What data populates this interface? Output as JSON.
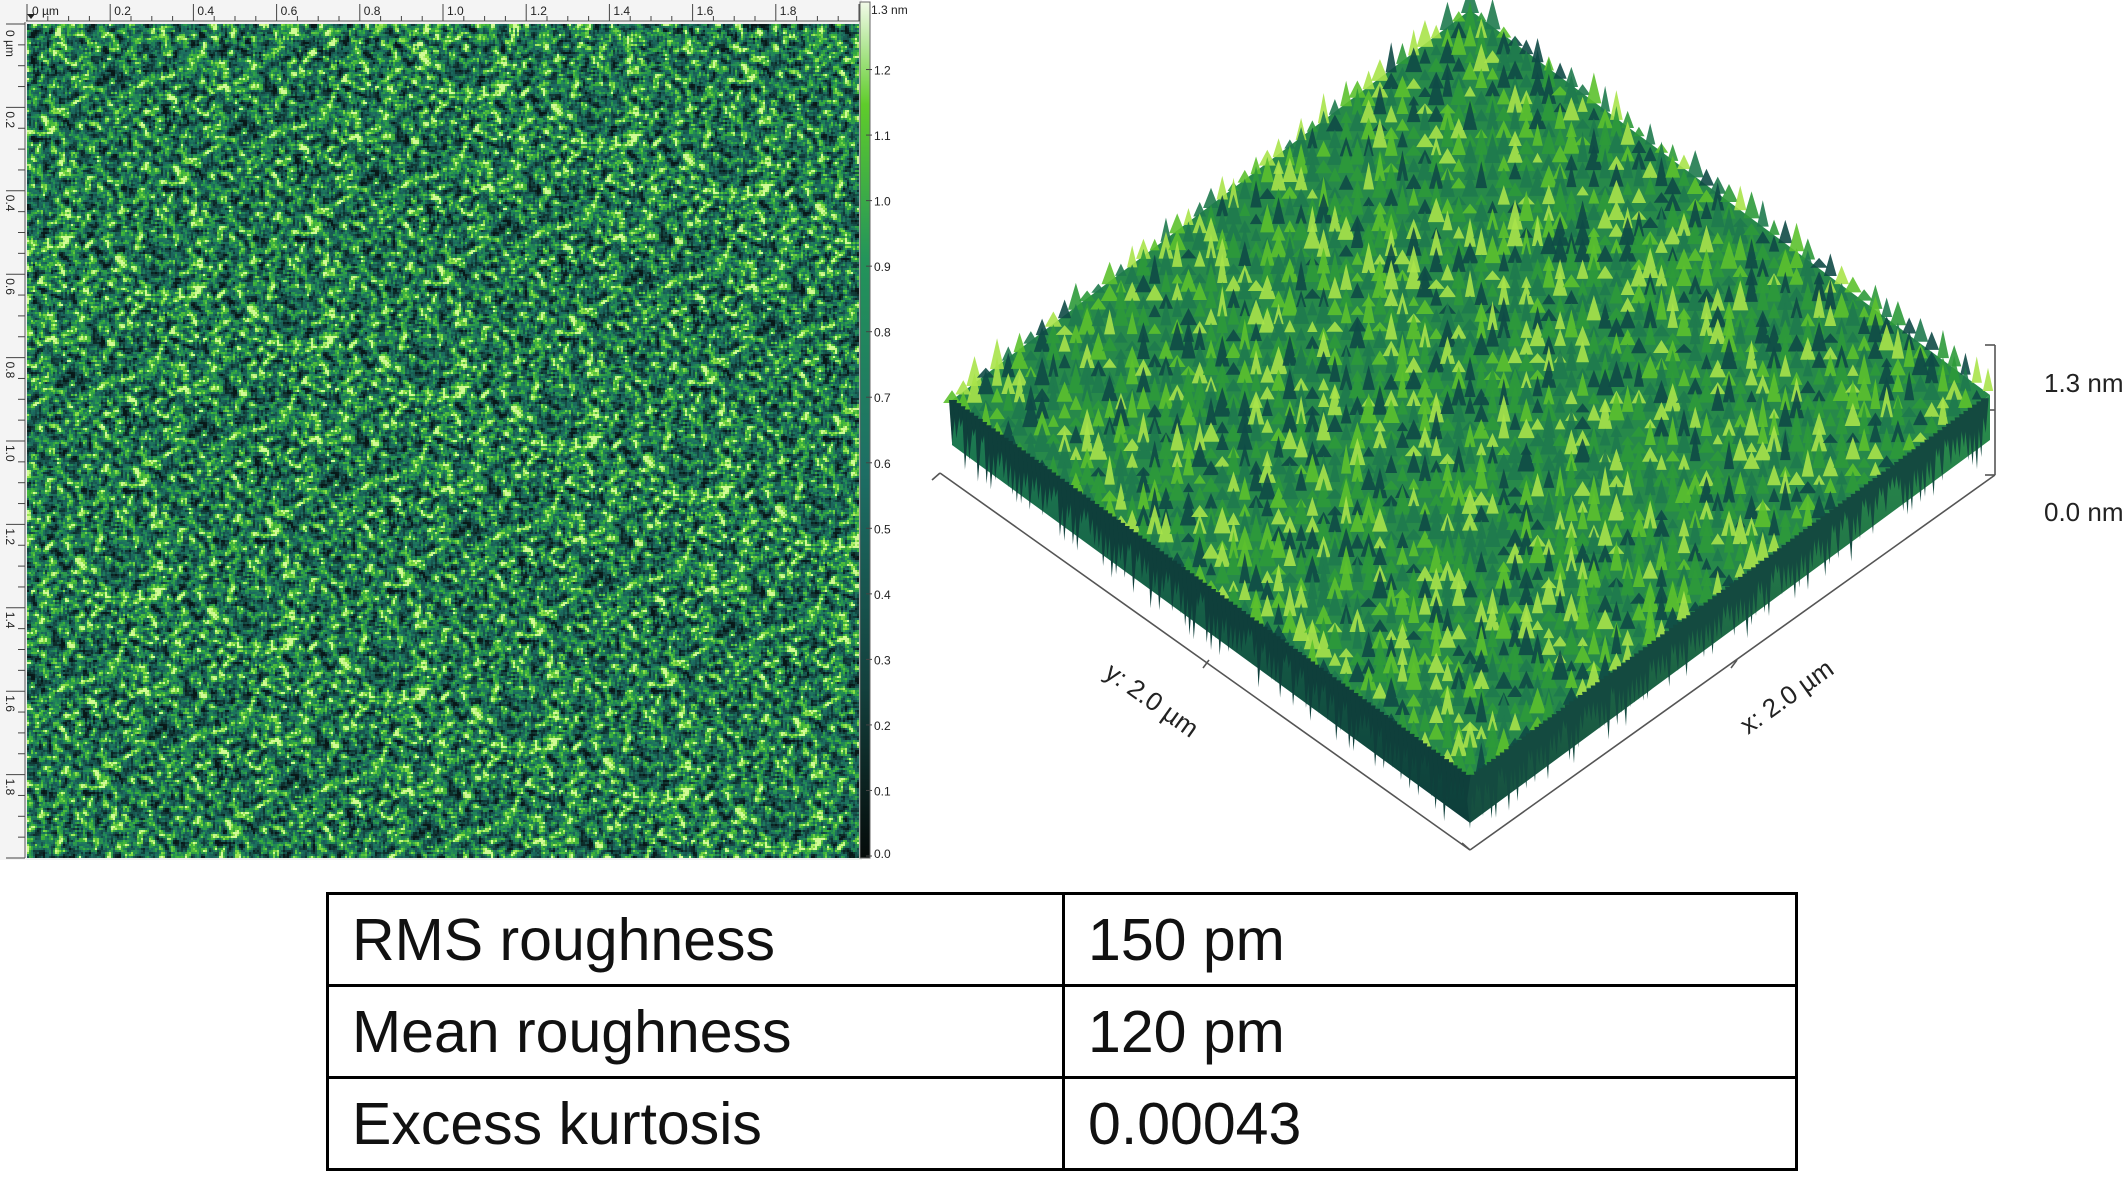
{
  "topview": {
    "x_unit_label": "0 µm",
    "y_unit_label": "0 µm",
    "x_ticks": [
      "0.2",
      "0.4",
      "0.6",
      "0.8",
      "1.0",
      "1.2",
      "1.4",
      "1.6",
      "1.8"
    ],
    "y_ticks": [
      "0.2",
      "0.4",
      "0.6",
      "0.8",
      "1.0",
      "1.2",
      "1.4",
      "1.6",
      "1.8"
    ],
    "x_range_um": [
      0,
      2.0
    ],
    "y_range_um": [
      0,
      2.0
    ],
    "colorbar": {
      "max_label": "1.3 nm",
      "ticks": [
        "1.2",
        "1.1",
        "1.0",
        "0.9",
        "0.8",
        "0.7",
        "0.6",
        "0.5",
        "0.4",
        "0.3",
        "0.2",
        "0.1",
        "0.0"
      ],
      "range_nm": [
        0.0,
        1.3
      ]
    },
    "colormap": [
      "#0a1f1e",
      "#1b5a55",
      "#1e7a5a",
      "#2e9a3c",
      "#6dcf2e",
      "#c6f05a"
    ]
  },
  "view3d": {
    "y_axis_label": "y: 2.0 µm",
    "x_axis_label": "x: 2.0 µm",
    "z_max_label": "1.3 nm",
    "z_min_label": "0.0 nm",
    "surface_colors": [
      "#0f4a46",
      "#1f7a4e",
      "#2e9a3a",
      "#5cc12e",
      "#a8e34a"
    ]
  },
  "stats": {
    "rows": [
      {
        "label": "RMS roughness",
        "value": "150 pm"
      },
      {
        "label": "Mean roughness",
        "value": "120 pm"
      },
      {
        "label": "Excess kurtosis",
        "value": "0.00043"
      }
    ]
  }
}
